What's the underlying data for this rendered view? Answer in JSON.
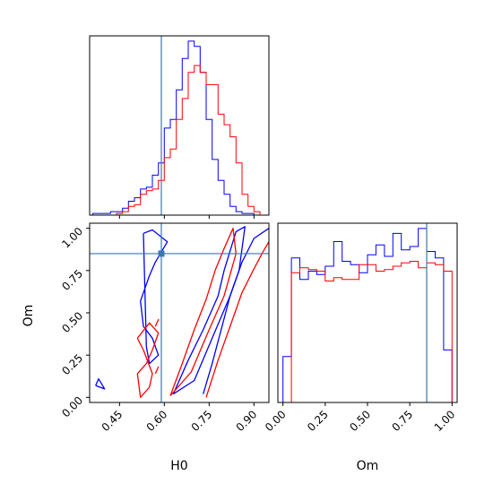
{
  "chart_data": {
    "type": "corner",
    "parameters": [
      "H0",
      "Om"
    ],
    "truths": {
      "H0": 0.59,
      "Om": 0.85
    },
    "colors": {
      "series_a": "#0000ff",
      "series_b": "#ff0000",
      "truth": "#3b78b0"
    },
    "series": [
      {
        "color": "#0000ff",
        "H0_hist": {
          "edges": [
            0.36,
            0.38,
            0.4,
            0.42,
            0.44,
            0.46,
            0.48,
            0.5,
            0.52,
            0.54,
            0.56,
            0.58,
            0.6,
            0.62,
            0.64,
            0.66,
            0.68,
            0.7,
            0.72,
            0.74,
            0.76,
            0.78,
            0.8,
            0.82,
            0.84,
            0.86,
            0.88,
            0.9,
            0.92,
            0.94
          ],
          "counts": [
            1,
            1,
            1,
            2,
            2,
            4,
            8,
            10,
            15,
            16,
            23,
            30,
            50,
            55,
            72,
            90,
            100,
            97,
            82,
            55,
            32,
            20,
            12,
            5,
            2,
            1,
            1,
            0,
            0
          ]
        },
        "Om_hist": {
          "edges": [
            0.0,
            0.05,
            0.1,
            0.15,
            0.2,
            0.25,
            0.3,
            0.35,
            0.4,
            0.45,
            0.5,
            0.55,
            0.6,
            0.65,
            0.7,
            0.75,
            0.8,
            0.85,
            0.9,
            0.95,
            1.0
          ],
          "counts": [
            28,
            88,
            75,
            80,
            78,
            83,
            98,
            86,
            84,
            79,
            90,
            96,
            89,
            103,
            93,
            95,
            106,
            92,
            88,
            32
          ]
        },
        "contours": [
          {
            "x": [
              0.37,
              0.38,
              0.4,
              0.37
            ],
            "y": [
              0.07,
              0.11,
              0.05,
              0.07
            ]
          },
          {
            "x": [
              0.53,
              0.56,
              0.61,
              0.59,
              0.57,
              0.55,
              0.52,
              0.53,
              0.56,
              0.58,
              0.55,
              0.54,
              0.53
            ],
            "y": [
              0.97,
              0.99,
              0.92,
              0.86,
              0.8,
              0.72,
              0.57,
              0.42,
              0.35,
              0.25,
              0.2,
              0.3,
              0.97
            ]
          },
          {
            "x": [
              0.63,
              0.68,
              0.73,
              0.78,
              0.8,
              0.84,
              0.87,
              0.85,
              0.82,
              0.76,
              0.7,
              0.63
            ],
            "y": [
              0.02,
              0.22,
              0.4,
              0.6,
              0.75,
              0.98,
              1.01,
              0.75,
              0.6,
              0.35,
              0.1,
              0.02
            ]
          },
          {
            "x": [
              0.73,
              0.76,
              0.79,
              0.82,
              0.86,
              0.9,
              0.95
            ],
            "y": [
              0.02,
              0.2,
              0.4,
              0.6,
              0.8,
              0.94,
              1.0
            ]
          }
        ]
      },
      {
        "color": "#ff0000",
        "H0_hist": {
          "edges": [
            0.36,
            0.38,
            0.4,
            0.42,
            0.44,
            0.46,
            0.48,
            0.5,
            0.52,
            0.54,
            0.56,
            0.58,
            0.6,
            0.62,
            0.64,
            0.66,
            0.68,
            0.7,
            0.72,
            0.74,
            0.76,
            0.78,
            0.8,
            0.82,
            0.84,
            0.86,
            0.88,
            0.9,
            0.92,
            0.94
          ],
          "counts": [
            0,
            0,
            0,
            0,
            1,
            2,
            5,
            6,
            12,
            14,
            15,
            20,
            33,
            38,
            55,
            67,
            82,
            86,
            82,
            75,
            75,
            58,
            52,
            45,
            30,
            12,
            5,
            2,
            0
          ]
        },
        "Om_hist": {
          "edges": [
            0.0,
            0.05,
            0.1,
            0.15,
            0.2,
            0.25,
            0.3,
            0.35,
            0.4,
            0.45,
            0.5,
            0.55,
            0.6,
            0.65,
            0.7,
            0.75,
            0.8,
            0.85,
            0.9,
            0.95,
            1.0
          ],
          "counts": [
            0,
            79,
            82,
            81,
            80,
            74,
            76,
            75,
            75,
            84,
            84,
            80,
            81,
            83,
            85,
            86,
            82,
            85,
            84,
            80
          ]
        },
        "contours": [
          {
            "x": [
              0.51,
              0.55,
              0.58,
              0.56,
              0.54,
              0.51,
              0.52,
              0.55,
              0.56,
              0.53,
              0.51
            ],
            "y": [
              0.35,
              0.44,
              0.38,
              0.28,
              0.2,
              0.14,
              0.0,
              0.06,
              0.14,
              0.28,
              0.35
            ]
          },
          {
            "x": [
              0.57,
              0.58,
              0.57
            ],
            "y": [
              0.42,
              0.46,
              0.42
            ]
          },
          {
            "x": [
              0.57,
              0.58,
              0.57
            ],
            "y": [
              0.14,
              0.18,
              0.14
            ]
          },
          {
            "x": [
              0.62,
              0.66,
              0.7,
              0.74,
              0.77,
              0.8,
              0.83,
              0.84,
              0.8,
              0.75,
              0.69,
              0.62
            ],
            "y": [
              0.01,
              0.2,
              0.4,
              0.58,
              0.75,
              0.88,
              1.0,
              0.85,
              0.6,
              0.4,
              0.15,
              0.01
            ]
          },
          {
            "x": [
              0.74,
              0.78,
              0.82,
              0.86,
              0.9,
              0.93,
              0.96
            ],
            "y": [
              0.0,
              0.22,
              0.42,
              0.62,
              0.76,
              0.86,
              0.95
            ]
          }
        ]
      }
    ],
    "axes": {
      "H0": {
        "label": "H0",
        "lim": [
          0.35,
          0.95
        ],
        "ticks": [
          0.45,
          0.6,
          0.75,
          0.9
        ],
        "tick_labels": [
          "0.45",
          "0.60",
          "0.75",
          "0.90"
        ]
      },
      "Om": {
        "label": "Om",
        "lim": [
          -0.03,
          1.03
        ],
        "ticks": [
          0.0,
          0.25,
          0.5,
          0.75,
          1.0
        ],
        "tick_labels": [
          "0.00",
          "0.25",
          "0.50",
          "0.75",
          "1.00"
        ]
      }
    },
    "grid": false,
    "legend": "none"
  }
}
